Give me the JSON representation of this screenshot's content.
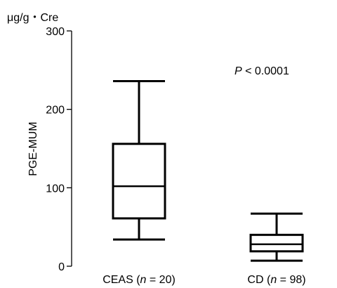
{
  "chart_data": {
    "type": "box",
    "unit_label": "μg/g・Cre",
    "ylabel": "PGE-MUM",
    "ylim": [
      0,
      300
    ],
    "yticks": [
      "0",
      "100",
      "200",
      "300"
    ],
    "annotation": {
      "variable": "P",
      "text": " < 0.0001"
    },
    "groups": [
      {
        "name": "CEAS",
        "n_label": "n",
        "n_value": " = 20",
        "whisker_low": 34,
        "q1": 61,
        "median": 102,
        "q3": 156,
        "whisker_high": 236
      },
      {
        "name": "CD",
        "n_label": "n",
        "n_value": " = 98",
        "whisker_low": 7,
        "q1": 19,
        "median": 28,
        "q3": 40,
        "whisker_high": 67
      }
    ]
  }
}
